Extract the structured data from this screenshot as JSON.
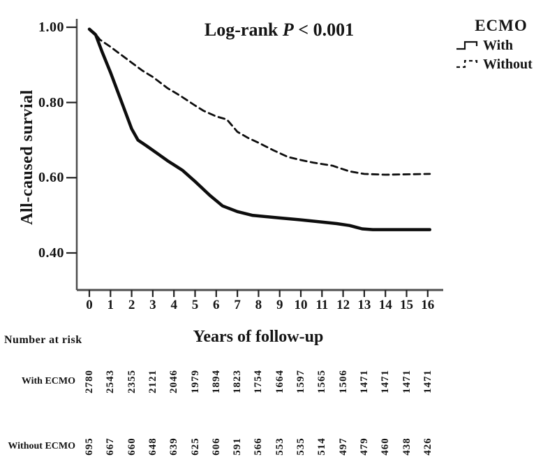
{
  "annotation": {
    "prefix": "Log-rank",
    "italic_p": "P",
    "suffix": "< 0.001"
  },
  "chart_data": {
    "type": "line",
    "subtype": "kaplan-meier-survival",
    "title": "",
    "annotation": "Log-rank P < 0.001",
    "xlabel": "Years of follow-up",
    "ylabel": "All-caused survial",
    "xlim": [
      0,
      16.3
    ],
    "ylim": [
      0.35,
      1.02
    ],
    "x_ticks": [
      0,
      1,
      2,
      3,
      4,
      5,
      6,
      7,
      8,
      9,
      10,
      11,
      12,
      13,
      14,
      15,
      16
    ],
    "x_tick_labels": [
      "0",
      "1",
      "2",
      "3",
      "4",
      "5",
      "6",
      "7",
      "8",
      "9",
      "10",
      "11",
      "12",
      "13",
      "14",
      "15",
      "16"
    ],
    "y_ticks": [
      1.0,
      0.8,
      0.6,
      0.4
    ],
    "y_tick_labels": [
      "1.00",
      "0.80",
      "0.60",
      "0.40"
    ],
    "grid": false,
    "legend_title": "ECMO",
    "legend_position": "outside-top-right",
    "line_color": "#0d0d0d",
    "series": [
      {
        "name": "With",
        "style": "solid",
        "points": [
          [
            0,
            0.995
          ],
          [
            0.3,
            0.98
          ],
          [
            0.6,
            0.935
          ],
          [
            1,
            0.88
          ],
          [
            1.3,
            0.835
          ],
          [
            1.6,
            0.79
          ],
          [
            2,
            0.73
          ],
          [
            2.3,
            0.7
          ],
          [
            2.7,
            0.685
          ],
          [
            3.2,
            0.665
          ],
          [
            3.7,
            0.645
          ],
          [
            4.4,
            0.62
          ],
          [
            5,
            0.59
          ],
          [
            5.7,
            0.553
          ],
          [
            6.3,
            0.525
          ],
          [
            7,
            0.51
          ],
          [
            7.7,
            0.5
          ],
          [
            9,
            0.493
          ],
          [
            10,
            0.488
          ],
          [
            11,
            0.482
          ],
          [
            11.7,
            0.478
          ],
          [
            12.3,
            0.473
          ],
          [
            12.9,
            0.464
          ],
          [
            13.4,
            0.462
          ],
          [
            16.1,
            0.462
          ]
        ]
      },
      {
        "name": "Without",
        "style": "dashed",
        "points": [
          [
            0,
            0.995
          ],
          [
            0.25,
            0.985
          ],
          [
            0.5,
            0.967
          ],
          [
            1,
            0.948
          ],
          [
            1.5,
            0.927
          ],
          [
            2,
            0.906
          ],
          [
            2.5,
            0.885
          ],
          [
            3,
            0.868
          ],
          [
            3.7,
            0.838
          ],
          [
            4.3,
            0.818
          ],
          [
            5,
            0.792
          ],
          [
            5.4,
            0.778
          ],
          [
            6,
            0.763
          ],
          [
            6.5,
            0.755
          ],
          [
            7,
            0.722
          ],
          [
            7.5,
            0.706
          ],
          [
            8,
            0.693
          ],
          [
            8.7,
            0.673
          ],
          [
            9.4,
            0.655
          ],
          [
            10,
            0.647
          ],
          [
            10.6,
            0.64
          ],
          [
            11.5,
            0.632
          ],
          [
            12.3,
            0.617
          ],
          [
            13,
            0.61
          ],
          [
            14,
            0.608
          ],
          [
            16.1,
            0.61
          ]
        ]
      }
    ],
    "number_at_risk": {
      "header": "Number at risk",
      "time_points": [
        0,
        1,
        2,
        3,
        4,
        5,
        6,
        7,
        8,
        9,
        10,
        11,
        12,
        13,
        14,
        15,
        16
      ],
      "rows": [
        {
          "label": "With ECMO",
          "values": [
            "2780",
            "2543",
            "2355",
            "2121",
            "2046",
            "1979",
            "1894",
            "1823",
            "1754",
            "1664",
            "1597",
            "1565",
            "1506",
            "1471",
            "1471",
            "1471",
            "1471"
          ]
        },
        {
          "label": "Without ECMO",
          "values": [
            "695",
            "667",
            "660",
            "648",
            "639",
            "625",
            "606",
            "591",
            "566",
            "553",
            "535",
            "514",
            "497",
            "479",
            "460",
            "438",
            "426"
          ]
        }
      ]
    }
  }
}
